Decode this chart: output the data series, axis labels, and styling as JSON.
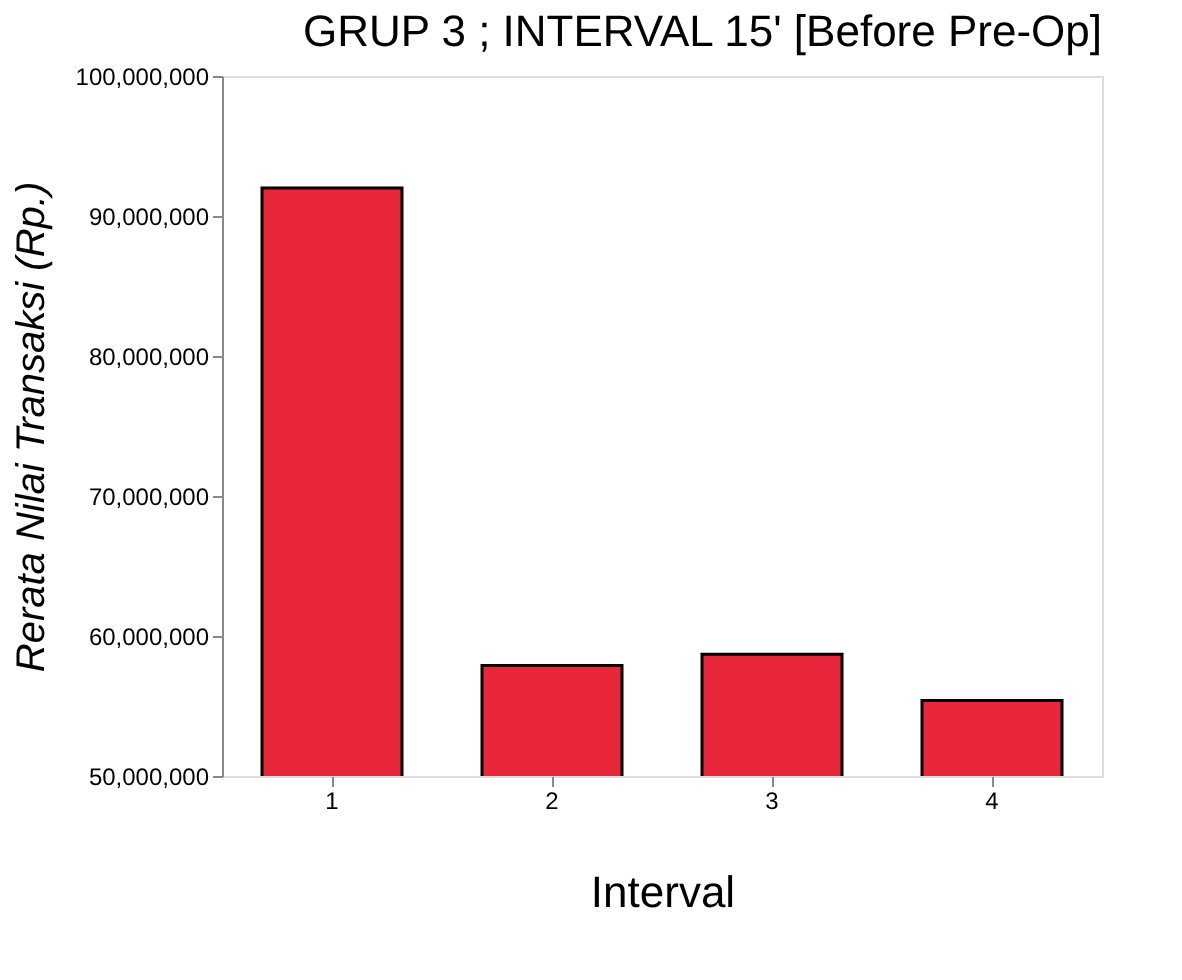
{
  "chart_data": {
    "type": "bar",
    "title": "GRUP 3 ; INTERVAL 15' [Before Pre-Op]",
    "xlabel": "Interval",
    "ylabel": "Rerata Nilai Transaksi (Rp.)",
    "categories": [
      "1",
      "2",
      "3",
      "4"
    ],
    "values": [
      92000000,
      57900000,
      58700000,
      55400000
    ],
    "color": "#e8283a",
    "ylim": [
      50000000,
      100000000
    ],
    "yticks": [
      {
        "value": 50000000,
        "label": "50,000,000"
      },
      {
        "value": 60000000,
        "label": "60,000,000"
      },
      {
        "value": 70000000,
        "label": "70,000,000"
      },
      {
        "value": 80000000,
        "label": "80,000,000"
      },
      {
        "value": 90000000,
        "label": "90,000,000"
      },
      {
        "value": 100000000,
        "label": "100,000,000"
      }
    ],
    "grid": false
  }
}
